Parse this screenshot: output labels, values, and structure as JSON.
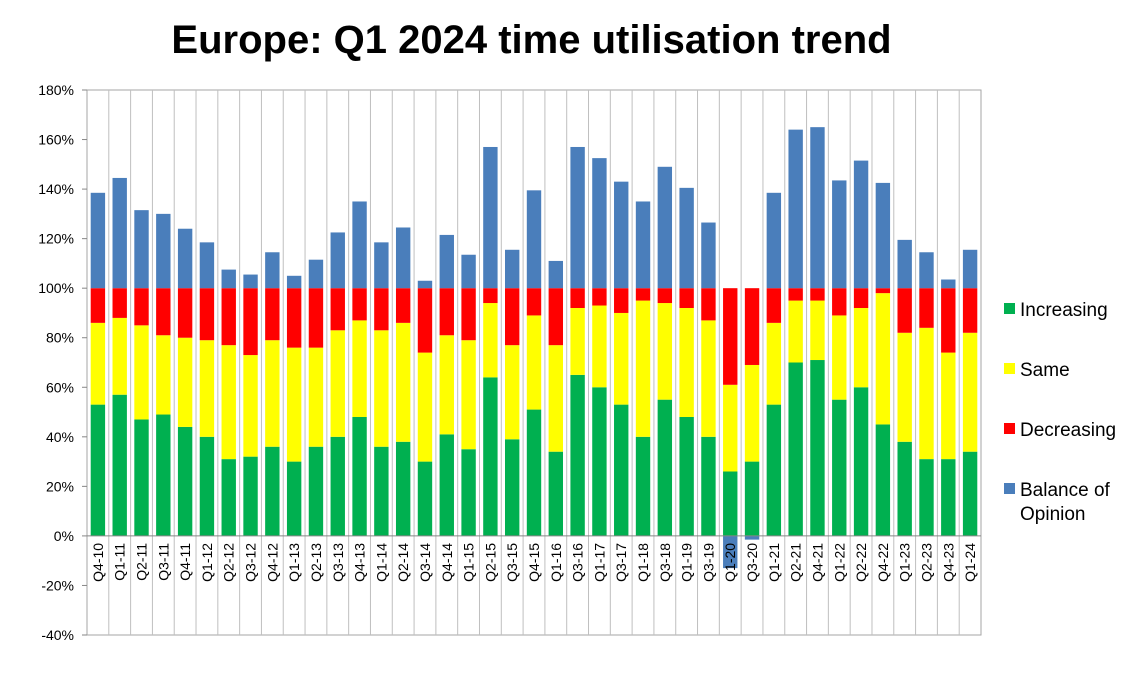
{
  "chart_data": {
    "type": "bar",
    "stacked": true,
    "title": "Europe: Q1 2024 time utilisation trend",
    "xlabel": "",
    "ylabel": "",
    "ylim": [
      -40,
      180
    ],
    "yticks": [
      -40,
      -20,
      0,
      20,
      40,
      60,
      80,
      100,
      120,
      140,
      160,
      180
    ],
    "ytick_labels": [
      "-40%",
      "-20%",
      "0%",
      "20%",
      "40%",
      "60%",
      "80%",
      "100%",
      "120%",
      "140%",
      "160%",
      "180%"
    ],
    "grid": "vertical",
    "legend_position": "right",
    "categories": [
      "Q4-10",
      "Q1-11",
      "Q2-11",
      "Q3-11",
      "Q4-11",
      "Q1-12",
      "Q2-12",
      "Q3-12",
      "Q4-12",
      "Q1-13",
      "Q2-13",
      "Q3-13",
      "Q4-13",
      "Q1-14",
      "Q2-14",
      "Q3-14",
      "Q4-14",
      "Q1-15",
      "Q2-15",
      "Q3-15",
      "Q4-15",
      "Q1-16",
      "Q3-16",
      "Q1-17",
      "Q3-17",
      "Q1-18",
      "Q3-18",
      "Q1-19",
      "Q3-19",
      "Q1-20",
      "Q3-20",
      "Q1-21",
      "Q2-21",
      "Q4-21",
      "Q1-22",
      "Q2-22",
      "Q4-22",
      "Q1-23",
      "Q2-23",
      "Q4-23",
      "Q1-24"
    ],
    "series": [
      {
        "name": "Increasing",
        "color": "#00b050",
        "values": [
          53,
          57,
          47,
          49,
          44,
          40,
          31,
          32,
          36,
          30,
          36,
          40,
          48,
          36,
          38,
          30,
          41,
          35,
          64,
          39,
          51,
          34,
          65,
          60,
          53,
          40,
          55,
          48,
          40,
          26,
          30,
          53,
          70,
          71,
          55,
          60,
          45,
          38,
          31,
          31,
          34
        ]
      },
      {
        "name": "Same",
        "color": "#ffff00",
        "values": [
          33,
          31,
          38,
          32,
          36,
          39,
          46,
          41,
          43,
          46,
          40,
          43,
          39,
          47,
          48,
          44,
          40,
          44,
          30,
          38,
          38,
          43,
          27,
          33,
          37,
          55,
          39,
          44,
          47,
          35,
          39,
          33,
          25,
          24,
          34,
          32,
          53,
          44,
          53,
          43,
          48
        ]
      },
      {
        "name": "Decreasing",
        "color": "#ff0000",
        "values": [
          14,
          12,
          15,
          19,
          20,
          21,
          23,
          27,
          21,
          24,
          24,
          17,
          13,
          17,
          14,
          26,
          19,
          21,
          6,
          23,
          11,
          23,
          8,
          7,
          10,
          5,
          6,
          8,
          13,
          39,
          31,
          14,
          5,
          5,
          11,
          8,
          2,
          18,
          16,
          26,
          18
        ]
      },
      {
        "name": "Balance of Opinion",
        "color": "#4a7ebb",
        "values": [
          38.5,
          44.5,
          31.5,
          30,
          24,
          18.5,
          7.5,
          5.5,
          14.5,
          5,
          11.5,
          22.5,
          35,
          18.5,
          24.5,
          3,
          21.5,
          13.5,
          57,
          15.5,
          39.5,
          11,
          57,
          52.5,
          43,
          35,
          49,
          40.5,
          26.5,
          -13,
          -1.5,
          38.5,
          64,
          65,
          43.5,
          51.5,
          42.5,
          19.5,
          14.5,
          3.5,
          15.5
        ]
      }
    ]
  }
}
